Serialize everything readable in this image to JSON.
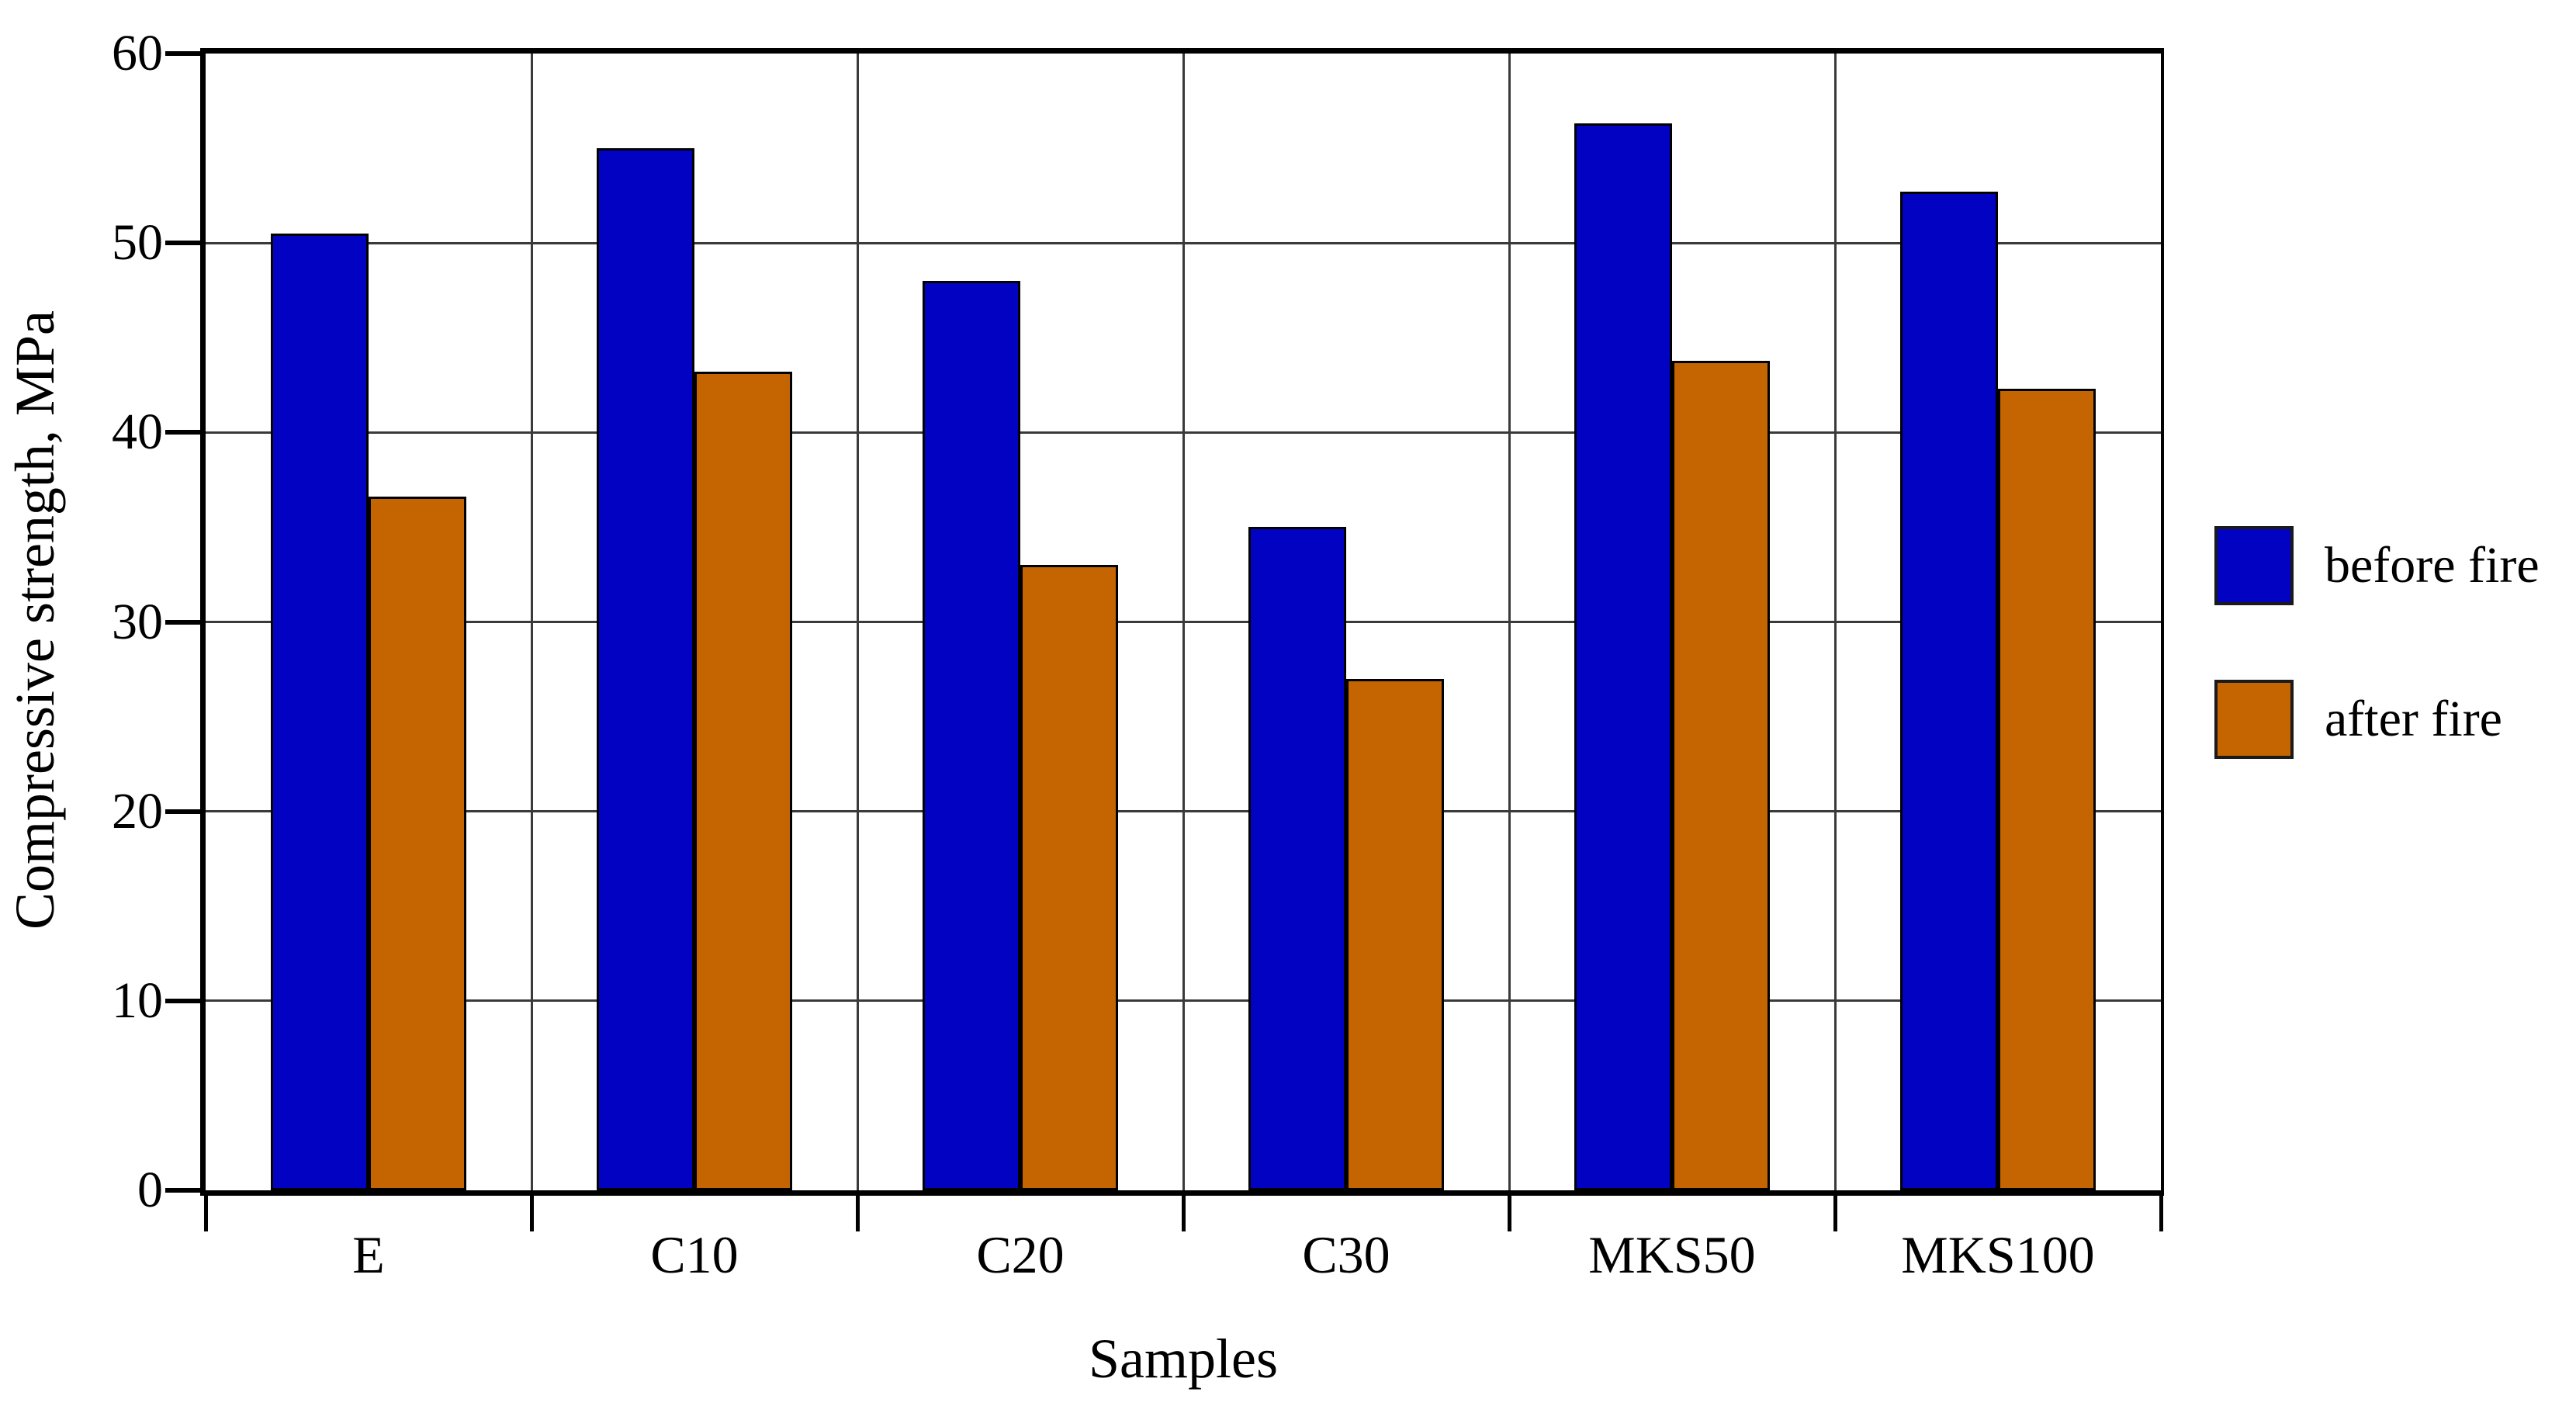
{
  "chart_data": {
    "type": "bar",
    "title": "",
    "xlabel": "Samples",
    "ylabel": "Compressive strength, MPa",
    "categories": [
      "E",
      "C10",
      "C20",
      "C30",
      "MKS50",
      "MKS100"
    ],
    "series": [
      {
        "name": "before fire",
        "color": "#0202c2",
        "values": [
          50.5,
          55.0,
          48.0,
          35.0,
          56.3,
          52.7
        ]
      },
      {
        "name": "after fire",
        "color": "#c56502",
        "values": [
          36.6,
          43.2,
          33.0,
          27.0,
          43.8,
          42.3
        ]
      }
    ],
    "ylim": [
      0,
      60
    ],
    "yticks": [
      0,
      10,
      20,
      30,
      40,
      50,
      60
    ],
    "grid": true,
    "legend_position": "right"
  },
  "colors": {
    "gridline": "#3a3a3a",
    "axis": "#000000",
    "background": "#ffffff",
    "text": "#000000"
  }
}
